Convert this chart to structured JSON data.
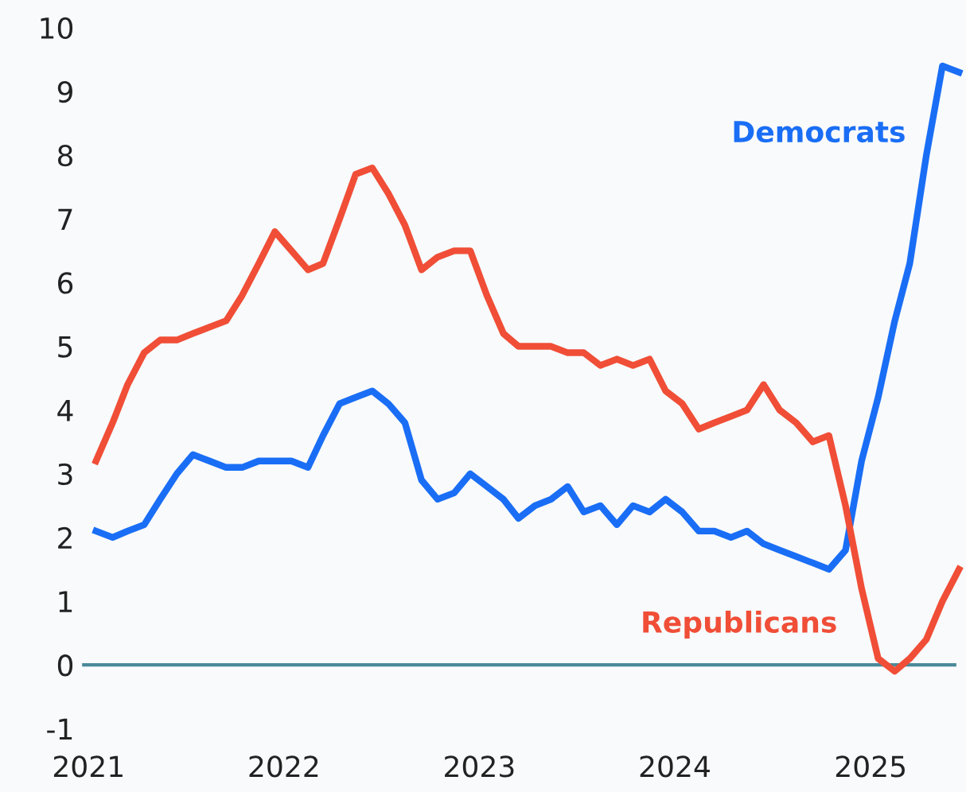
{
  "chart_data": {
    "type": "line",
    "x": [
      "2021-01",
      "2021-02",
      "2021-03",
      "2021-04",
      "2021-05",
      "2021-06",
      "2021-07",
      "2021-08",
      "2021-09",
      "2021-10",
      "2021-11",
      "2021-12",
      "2022-01",
      "2022-02",
      "2022-03",
      "2022-04",
      "2022-05",
      "2022-06",
      "2022-07",
      "2022-08",
      "2022-09",
      "2022-10",
      "2022-11",
      "2022-12",
      "2023-01",
      "2023-02",
      "2023-03",
      "2023-04",
      "2023-05",
      "2023-06",
      "2023-07",
      "2023-08",
      "2023-09",
      "2023-10",
      "2023-11",
      "2023-12",
      "2024-01",
      "2024-02",
      "2024-03",
      "2024-04",
      "2024-05",
      "2024-06",
      "2024-07",
      "2024-08",
      "2024-09",
      "2024-10",
      "2024-11",
      "2024-12",
      "2025-01",
      "2025-02",
      "2025-03",
      "2025-04",
      "2025-05",
      "2025-06"
    ],
    "series": [
      {
        "name": "Democrats",
        "color": "#1a6ef5",
        "values": [
          2.1,
          2.0,
          2.1,
          2.2,
          2.6,
          3.0,
          3.3,
          3.2,
          3.1,
          3.1,
          3.2,
          3.2,
          3.2,
          3.1,
          3.6,
          4.1,
          4.2,
          4.3,
          4.1,
          3.8,
          2.9,
          2.6,
          2.7,
          3.0,
          2.8,
          2.6,
          2.3,
          2.5,
          2.6,
          2.8,
          2.4,
          2.5,
          2.2,
          2.5,
          2.4,
          2.6,
          2.4,
          2.1,
          2.1,
          2.0,
          2.1,
          1.9,
          1.8,
          1.7,
          1.6,
          1.5,
          1.8,
          3.2,
          4.2,
          5.4,
          6.3,
          8.0,
          9.4,
          9.3
        ]
      },
      {
        "name": "Republicans",
        "color": "#f04e37",
        "values": [
          3.2,
          3.8,
          4.4,
          4.9,
          5.1,
          5.1,
          5.2,
          5.3,
          5.4,
          5.8,
          6.3,
          6.8,
          6.5,
          6.2,
          6.3,
          7.0,
          7.7,
          7.8,
          7.4,
          6.9,
          6.2,
          6.4,
          6.5,
          6.5,
          5.8,
          5.2,
          5.0,
          5.0,
          5.0,
          4.9,
          4.9,
          4.7,
          4.8,
          4.7,
          4.8,
          4.3,
          4.1,
          3.7,
          3.8,
          3.9,
          4.0,
          4.4,
          4.0,
          3.8,
          3.5,
          3.6,
          2.5,
          1.2,
          0.1,
          -0.1,
          0.1,
          0.4,
          1.0,
          1.5
        ]
      }
    ],
    "xlim": [
      "2020-12-20",
      "2025-06-10"
    ],
    "xticks": [
      {
        "value": "2021-01-01",
        "label": "2021"
      },
      {
        "value": "2022-01-01",
        "label": "2022"
      },
      {
        "value": "2023-01-01",
        "label": "2023"
      },
      {
        "value": "2024-01-01",
        "label": "2024"
      },
      {
        "value": "2025-01-01",
        "label": "2025"
      }
    ],
    "ylim": [
      -1,
      10
    ],
    "yticks": [
      -1,
      0,
      1,
      2,
      3,
      4,
      5,
      6,
      7,
      8,
      9,
      10
    ],
    "ref_lines": [
      {
        "axis": "y",
        "value": 0,
        "color": "#4a8a9a"
      }
    ],
    "grid": false,
    "legend": false,
    "marker": "none",
    "line_style": "solid"
  }
}
